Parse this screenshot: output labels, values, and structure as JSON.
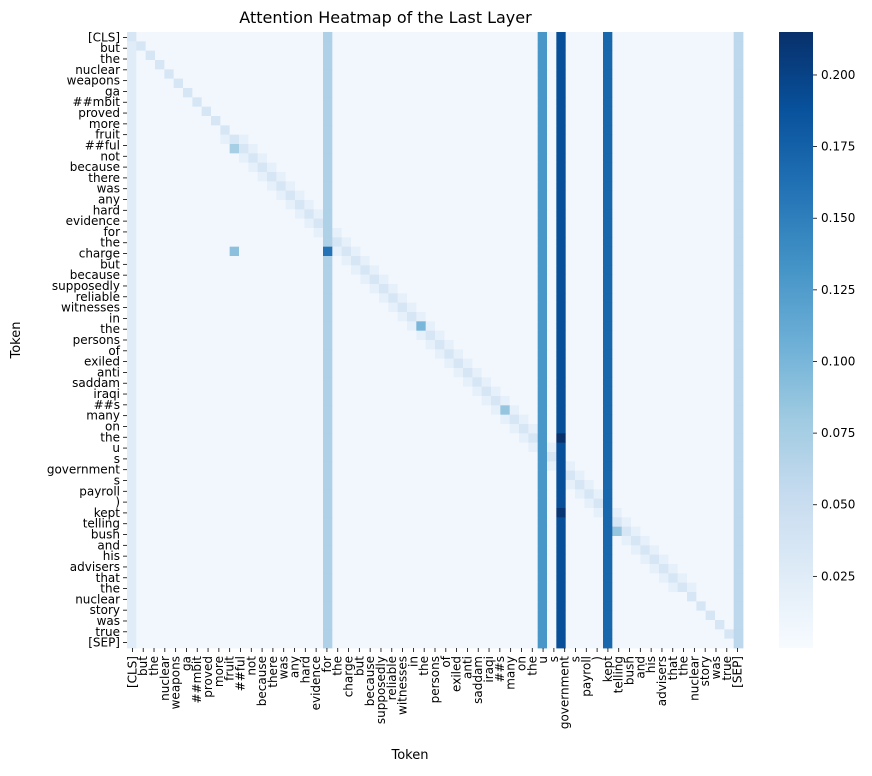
{
  "chart_data": {
    "type": "heatmap",
    "title": "Attention Heatmap of the Last Layer",
    "xlabel": "Token",
    "ylabel": "Token",
    "colormap": "Blues",
    "colorbar": {
      "min": 0.0,
      "max": 0.215,
      "ticks": [
        0.025,
        0.05,
        0.075,
        0.1,
        0.125,
        0.15,
        0.175,
        0.2
      ],
      "tick_labels": [
        "0.025",
        "0.050",
        "0.075",
        "0.100",
        "0.125",
        "0.150",
        "0.175",
        "0.200"
      ]
    },
    "tokens": [
      "[CLS]",
      "but",
      "the",
      "nuclear",
      "weapons",
      "ga",
      "##mbit",
      "proved",
      "more",
      "fruit",
      "##ful",
      ",",
      "not",
      "because",
      "there",
      "was",
      "any",
      "hard",
      "evidence",
      "for",
      "the",
      "charge",
      ",",
      "but",
      "because",
      "supposedly",
      "reliable",
      "witnesses",
      "(",
      "in",
      "the",
      "persons",
      "of",
      "exiled",
      "anti",
      "-",
      "saddam",
      "iraqi",
      "##s",
      ",",
      "many",
      "on",
      "the",
      "u",
      ".",
      "s",
      ".",
      "government",
      "'",
      "s",
      "payroll",
      ")",
      "kept",
      "telling",
      "bush",
      "and",
      "his",
      "advisers",
      "that",
      "the",
      "nuclear",
      "story",
      "was",
      "true",
      ".",
      "[SEP]"
    ],
    "x_tick_labels": [
      "[CLS]",
      "but",
      "the",
      "nuclear",
      "weapons",
      "ga",
      "##mbit",
      "proved",
      "more",
      "fruit",
      "##ful",
      "not",
      "because",
      "there",
      "was",
      "any",
      "hard",
      "evidence",
      "for",
      "the",
      "charge",
      "but",
      "because",
      "supposedly",
      "reliable",
      "witnesses",
      "in",
      "the",
      "persons",
      "of",
      "exiled",
      "anti",
      "saddam",
      "iraqi",
      "##s",
      "many",
      "on",
      "the",
      "u",
      "s",
      "government",
      "s",
      "payroll",
      ")",
      "kept",
      "telling",
      "bush",
      "and",
      "his",
      "advisers",
      "that",
      "the",
      "nuclear",
      "story",
      "was",
      "true",
      "[SEP]"
    ],
    "y_tick_labels": [
      "[CLS]",
      "but",
      "the",
      "nuclear",
      "weapons",
      "ga",
      "##mbit",
      "proved",
      "more",
      "fruit",
      "##ful",
      "not",
      "because",
      "there",
      "was",
      "any",
      "hard",
      "evidence",
      "for",
      "the",
      "charge",
      "but",
      "because",
      "supposedly",
      "reliable",
      "witnesses",
      "in",
      "the",
      "persons",
      "of",
      "exiled",
      "anti",
      "saddam",
      "iraqi",
      "##s",
      "many",
      "on",
      "the",
      "u",
      "s",
      "government",
      "s",
      "payroll",
      ")",
      "kept",
      "telling",
      "bush",
      "and",
      "his",
      "advisers",
      "that",
      "the",
      "nuclear",
      "story",
      "was",
      "true",
      "[SEP]"
    ],
    "value_model": {
      "background": 0.006,
      "column_values": {
        "0": 0.025,
        "21": 0.07,
        "44": 0.13,
        "46": 0.19,
        "51": 0.17,
        "65": 0.06
      },
      "self_attention": 0.035,
      "peaks": [
        {
          "row": 12,
          "col": 11,
          "value": 0.075
        },
        {
          "row": 23,
          "col": 11,
          "value": 0.09
        },
        {
          "row": 31,
          "col": 31,
          "value": 0.1
        },
        {
          "row": 40,
          "col": 40,
          "value": 0.085
        },
        {
          "row": 53,
          "col": 52,
          "value": 0.085
        },
        {
          "row": 23,
          "col": 21,
          "value": 0.16
        },
        {
          "row": 43,
          "col": 46,
          "value": 0.215
        },
        {
          "row": 51,
          "col": 46,
          "value": 0.21
        }
      ]
    }
  }
}
